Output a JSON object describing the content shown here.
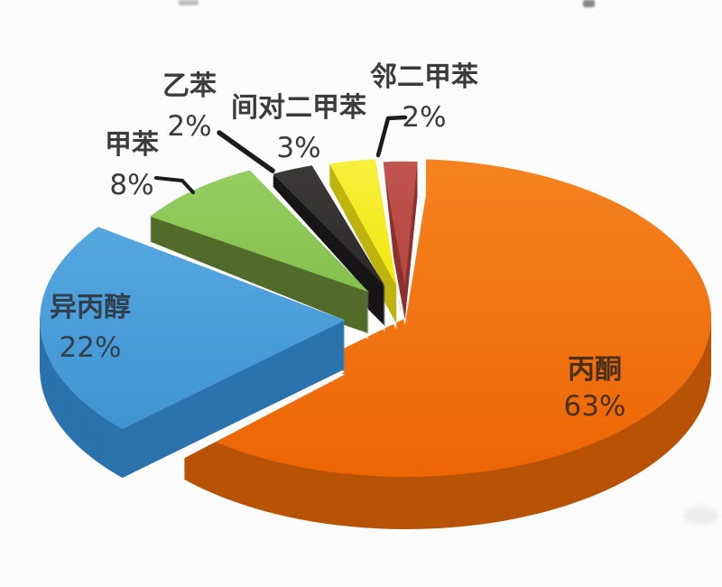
{
  "page": {
    "background": "#fcfcfc"
  },
  "chart_data": {
    "type": "pie",
    "style": "3d-exploded",
    "legend": "none",
    "unit": "%",
    "categories": [
      "丙酮",
      "异丙醇",
      "甲苯",
      "乙苯",
      "间对二甲苯",
      "邻二甲苯"
    ],
    "values": [
      63,
      22,
      8,
      2,
      3,
      2
    ],
    "label_color": "#3b3b3b",
    "leader_line_color": "#1c1c1c",
    "slices": [
      {
        "name": "丙酮",
        "value": 63,
        "percent_text": "63%",
        "color": "#ec6505",
        "color_light": "#f6831f",
        "side_color": "#b85205",
        "label_placement": "inside"
      },
      {
        "name": "异丙醇",
        "value": 22,
        "percent_text": "22%",
        "color": "#3f94d0",
        "color_light": "#56a7e0",
        "side_color": "#2b73ac",
        "label_placement": "inside"
      },
      {
        "name": "甲苯",
        "value": 8,
        "percent_text": "8%",
        "color": "#85c04e",
        "color_light": "#97cd62",
        "side_color": "#506b2a",
        "label_placement": "outside"
      },
      {
        "name": "乙苯",
        "value": 2,
        "percent_text": "2%",
        "color": "#2c292a",
        "color_light": "#3c3939",
        "side_color": "#171516",
        "label_placement": "outside"
      },
      {
        "name": "间对二甲苯",
        "value": 3,
        "percent_text": "3%",
        "color": "#f0e70f",
        "color_light": "#f7f03c",
        "side_color": "#beb40e",
        "label_placement": "outside"
      },
      {
        "name": "邻二甲苯",
        "value": 2,
        "percent_text": "2%",
        "color": "#b3463f",
        "color_light": "#c1544e",
        "side_color": "#8c3330",
        "label_placement": "outside"
      }
    ],
    "decor": {
      "sliver_color": "#c6c6c6",
      "sliver_side": "#ababab"
    }
  }
}
